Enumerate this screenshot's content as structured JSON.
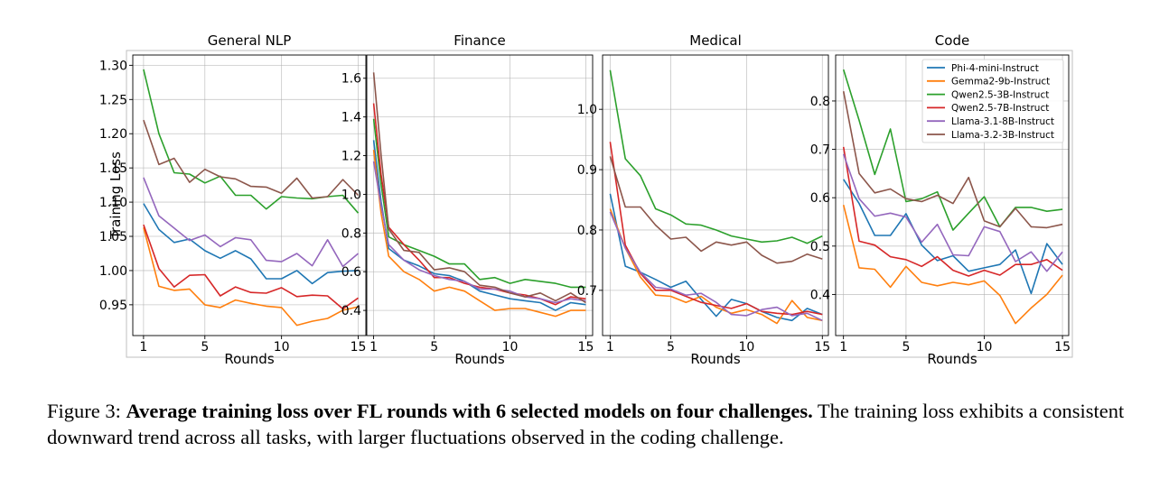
{
  "chart_data": [
    {
      "type": "line",
      "title": "General NLP",
      "xlabel": "Rounds",
      "ylabel": "Training Loss",
      "xlim": [
        0.3,
        15.5
      ],
      "ylim": [
        0.905,
        1.315
      ],
      "xticks": [
        1,
        5,
        10,
        15
      ],
      "yticks": [
        0.95,
        1.0,
        1.05,
        1.1,
        1.15,
        1.2,
        1.25,
        1.3
      ],
      "ytick_labels": [
        "0.95",
        "1.00",
        "1.05",
        "1.10",
        "1.15",
        "1.20",
        "1.25",
        "1.30"
      ],
      "x": [
        1,
        2,
        3,
        4,
        5,
        6,
        7,
        8,
        9,
        10,
        11,
        12,
        13,
        14,
        15
      ],
      "series": [
        {
          "name": "Phi-4-mini-Instruct",
          "values": [
            1.098,
            1.06,
            1.041,
            1.046,
            1.029,
            1.018,
            1.029,
            1.017,
            0.988,
            0.988,
            1.0,
            0.981,
            0.997,
            0.999,
            1.0
          ]
        },
        {
          "name": "Gemma2-9b-Instruct",
          "values": [
            1.063,
            0.977,
            0.971,
            0.973,
            0.95,
            0.946,
            0.957,
            0.952,
            0.948,
            0.946,
            0.92,
            0.926,
            0.93,
            0.942,
            0.947
          ]
        },
        {
          "name": "Qwen2.5-3B-Instruct",
          "values": [
            1.294,
            1.2,
            1.143,
            1.141,
            1.128,
            1.138,
            1.11,
            1.11,
            1.09,
            1.108,
            1.106,
            1.105,
            1.108,
            1.11,
            1.084
          ]
        },
        {
          "name": "Qwen2.5-7B-Instruct",
          "values": [
            1.067,
            1.003,
            0.976,
            0.993,
            0.994,
            0.963,
            0.976,
            0.968,
            0.967,
            0.975,
            0.962,
            0.964,
            0.963,
            0.944,
            0.96
          ]
        },
        {
          "name": "Llama-3.1-8B-Instruct",
          "values": [
            1.136,
            1.08,
            1.062,
            1.044,
            1.052,
            1.035,
            1.048,
            1.045,
            1.015,
            1.013,
            1.025,
            1.007,
            1.045,
            1.006,
            1.025
          ]
        },
        {
          "name": "Llama-3.2-3B-Instruct",
          "values": [
            1.22,
            1.155,
            1.164,
            1.129,
            1.148,
            1.137,
            1.134,
            1.123,
            1.122,
            1.113,
            1.135,
            1.106,
            1.108,
            1.133,
            1.11
          ]
        }
      ]
    },
    {
      "type": "line",
      "title": "Finance",
      "xlabel": "Rounds",
      "ylabel": "",
      "xlim": [
        0.55,
        15.45
      ],
      "ylim": [
        0.27,
        1.72
      ],
      "xticks": [
        1,
        5,
        10,
        15
      ],
      "yticks": [
        0.4,
        0.6,
        0.8,
        1.0,
        1.2,
        1.4,
        1.6
      ],
      "ytick_labels": [
        "0.4",
        "0.6",
        "0.8",
        "1.0",
        "1.2",
        "1.4",
        "1.6"
      ],
      "x": [
        1,
        1.5,
        2,
        3,
        4,
        5,
        6,
        7,
        8,
        9,
        10,
        11,
        12,
        13,
        14,
        15
      ],
      "series": [
        {
          "name": "Phi-4-mini-Instruct",
          "values": [
            1.28,
            0.96,
            0.72,
            0.66,
            0.63,
            0.59,
            0.58,
            0.55,
            0.5,
            0.48,
            0.46,
            0.45,
            0.44,
            0.4,
            0.44,
            0.43
          ]
        },
        {
          "name": "Gemma2-9b-Instruct",
          "values": [
            1.23,
            0.9,
            0.68,
            0.6,
            0.56,
            0.5,
            0.52,
            0.5,
            0.45,
            0.4,
            0.41,
            0.41,
            0.39,
            0.37,
            0.4,
            0.4
          ]
        },
        {
          "name": "Qwen2.5-3B-Instruct",
          "values": [
            1.39,
            1.05,
            0.78,
            0.74,
            0.71,
            0.68,
            0.64,
            0.64,
            0.56,
            0.57,
            0.54,
            0.56,
            0.55,
            0.54,
            0.52,
            0.52
          ]
        },
        {
          "name": "Qwen2.5-7B-Instruct",
          "values": [
            1.47,
            1.1,
            0.83,
            0.74,
            0.66,
            0.57,
            0.57,
            0.54,
            0.52,
            0.51,
            0.49,
            0.48,
            0.46,
            0.43,
            0.47,
            0.46
          ]
        },
        {
          "name": "Llama-3.1-8B-Instruct",
          "values": [
            1.17,
            0.94,
            0.74,
            0.66,
            0.61,
            0.58,
            0.56,
            0.55,
            0.51,
            0.51,
            0.5,
            0.47,
            0.46,
            0.44,
            0.46,
            0.45
          ]
        },
        {
          "name": "Llama-3.2-3B-Instruct",
          "values": [
            1.63,
            1.2,
            0.82,
            0.71,
            0.7,
            0.61,
            0.62,
            0.6,
            0.53,
            0.52,
            0.49,
            0.47,
            0.49,
            0.45,
            0.49,
            0.44
          ]
        }
      ]
    },
    {
      "type": "line",
      "title": "Medical",
      "xlabel": "Rounds",
      "ylabel": "",
      "xlim": [
        0.5,
        15.4
      ],
      "ylim": [
        0.625,
        1.09
      ],
      "xticks": [
        1,
        5,
        10,
        15
      ],
      "yticks": [
        0.7,
        0.8,
        0.9,
        1.0
      ],
      "ytick_labels": [
        "0.7",
        "0.8",
        "0.9",
        "1.0"
      ],
      "x": [
        1,
        2,
        3,
        4,
        5,
        6,
        7,
        8,
        9,
        10,
        11,
        12,
        13,
        14,
        15
      ],
      "series": [
        {
          "name": "Phi-4-mini-Instruct",
          "values": [
            0.86,
            0.74,
            0.73,
            0.718,
            0.705,
            0.715,
            0.685,
            0.657,
            0.685,
            0.678,
            0.665,
            0.655,
            0.65,
            0.67,
            0.66
          ]
        },
        {
          "name": "Gemma2-9b-Instruct",
          "values": [
            0.835,
            0.77,
            0.722,
            0.692,
            0.69,
            0.68,
            0.69,
            0.672,
            0.662,
            0.668,
            0.66,
            0.645,
            0.683,
            0.655,
            0.65
          ]
        },
        {
          "name": "Qwen2.5-3B-Instruct",
          "values": [
            1.065,
            0.918,
            0.89,
            0.835,
            0.825,
            0.81,
            0.808,
            0.8,
            0.79,
            0.785,
            0.78,
            0.782,
            0.788,
            0.778,
            0.79
          ]
        },
        {
          "name": "Qwen2.5-7B-Instruct",
          "values": [
            0.946,
            0.775,
            0.728,
            0.7,
            0.7,
            0.69,
            0.68,
            0.675,
            0.67,
            0.678,
            0.665,
            0.662,
            0.66,
            0.665,
            0.66
          ]
        },
        {
          "name": "Llama-3.1-8B-Instruct",
          "values": [
            0.83,
            0.77,
            0.73,
            0.705,
            0.702,
            0.692,
            0.695,
            0.68,
            0.66,
            0.658,
            0.668,
            0.672,
            0.658,
            0.662,
            0.65
          ]
        },
        {
          "name": "Llama-3.2-3B-Instruct",
          "values": [
            0.922,
            0.838,
            0.838,
            0.808,
            0.785,
            0.788,
            0.765,
            0.78,
            0.775,
            0.78,
            0.758,
            0.745,
            0.748,
            0.76,
            0.752
          ]
        }
      ]
    },
    {
      "type": "line",
      "title": "Code",
      "xlabel": "Rounds",
      "ylabel": "",
      "xlim": [
        0.5,
        15.4
      ],
      "ylim": [
        0.315,
        0.895
      ],
      "xticks": [
        1,
        5,
        10,
        15
      ],
      "yticks": [
        0.4,
        0.5,
        0.6,
        0.7,
        0.8
      ],
      "ytick_labels": [
        "0.4",
        "0.5",
        "0.6",
        "0.7",
        "0.8"
      ],
      "legend": "top-right",
      "x": [
        1,
        2,
        3,
        4,
        5,
        6,
        7,
        8,
        9,
        10,
        11,
        12,
        13,
        14,
        15
      ],
      "series": [
        {
          "name": "Phi-4-mini-Instruct",
          "values": [
            0.638,
            0.588,
            0.522,
            0.522,
            0.567,
            0.502,
            0.47,
            0.48,
            0.448,
            0.455,
            0.462,
            0.492,
            0.402,
            0.505,
            0.462
          ]
        },
        {
          "name": "Gemma2-9b-Instruct",
          "values": [
            0.585,
            0.455,
            0.452,
            0.415,
            0.458,
            0.425,
            0.418,
            0.425,
            0.42,
            0.428,
            0.398,
            0.34,
            0.372,
            0.4,
            0.44
          ]
        },
        {
          "name": "Qwen2.5-3B-Instruct",
          "values": [
            0.865,
            0.76,
            0.648,
            0.742,
            0.592,
            0.598,
            0.612,
            0.533,
            0.568,
            0.602,
            0.54,
            0.58,
            0.58,
            0.572,
            0.576
          ]
        },
        {
          "name": "Qwen2.5-7B-Instruct",
          "values": [
            0.705,
            0.51,
            0.502,
            0.478,
            0.472,
            0.458,
            0.478,
            0.45,
            0.438,
            0.45,
            0.44,
            0.462,
            0.462,
            0.472,
            0.45
          ]
        },
        {
          "name": "Llama-3.1-8B-Instruct",
          "values": [
            0.69,
            0.598,
            0.562,
            0.568,
            0.56,
            0.508,
            0.545,
            0.482,
            0.48,
            0.54,
            0.53,
            0.468,
            0.488,
            0.448,
            0.488
          ]
        },
        {
          "name": "Llama-3.2-3B-Instruct",
          "values": [
            0.82,
            0.65,
            0.61,
            0.618,
            0.598,
            0.592,
            0.605,
            0.588,
            0.642,
            0.552,
            0.54,
            0.578,
            0.54,
            0.538,
            0.545
          ]
        }
      ]
    }
  ],
  "series_colors": [
    "#1f77b4",
    "#ff7f0e",
    "#2ca02c",
    "#d62728",
    "#9467bd",
    "#8c564b"
  ],
  "caption": {
    "label": "Figure 3:",
    "bold": "Average training loss over FL rounds with 6 selected models on four challenges.",
    "text": "The training loss exhibits a consistent downward trend across all tasks, with larger fluctuations observed in the coding challenge."
  }
}
